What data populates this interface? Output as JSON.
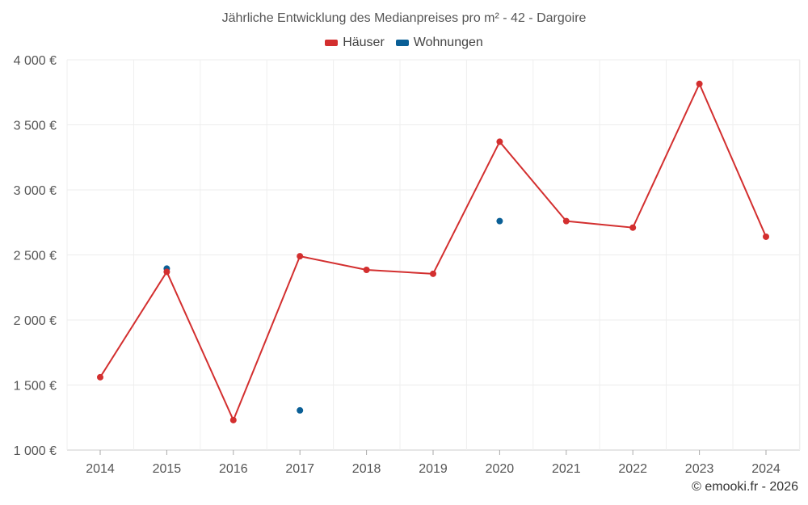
{
  "chart_data": {
    "type": "line",
    "title": "Jährliche Entwicklung des Medianpreises pro m² - 42 - Dargoire",
    "xlabel": "",
    "ylabel": "",
    "categories": [
      "2014",
      "2015",
      "2016",
      "2017",
      "2018",
      "2019",
      "2020",
      "2021",
      "2022",
      "2023",
      "2024"
    ],
    "ylim": [
      1000,
      4000
    ],
    "yticks": [
      1000,
      1500,
      2000,
      2500,
      3000,
      3500,
      4000
    ],
    "ytick_labels": [
      "1 000 €",
      "1 500 €",
      "2 000 €",
      "2 500 €",
      "3 000 €",
      "3 500 €",
      "4 000 €"
    ],
    "grid": true,
    "legend_position": "top-center",
    "series": [
      {
        "name": "Häuser",
        "color": "#d32f2f",
        "line": true,
        "values": [
          1560,
          2370,
          1230,
          2490,
          2385,
          2355,
          3370,
          2760,
          2710,
          3815,
          2640
        ]
      },
      {
        "name": "Wohnungen",
        "color": "#0a5f96",
        "line": false,
        "values": [
          null,
          2395,
          null,
          1305,
          null,
          null,
          2760,
          null,
          null,
          null,
          null
        ]
      }
    ]
  },
  "footer": {
    "credit": "© emooki.fr - 2026"
  }
}
